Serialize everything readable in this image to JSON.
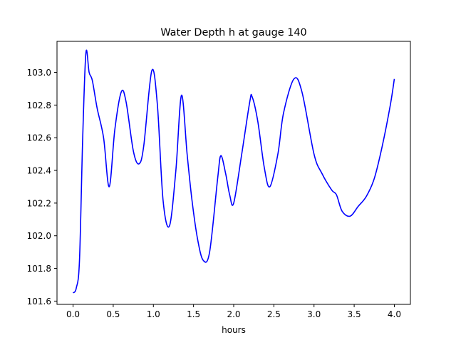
{
  "chart_data": {
    "type": "line",
    "title": "Water Depth h at gauge 140",
    "xlabel": "hours",
    "ylabel": "",
    "xlim": [
      -0.2,
      4.2
    ],
    "ylim": [
      101.58,
      103.19
    ],
    "grid": false,
    "xticks": [
      "0.0",
      "0.5",
      "1.0",
      "1.5",
      "2.0",
      "2.5",
      "3.0",
      "3.5",
      "4.0"
    ],
    "xtick_values": [
      0,
      0.5,
      1.0,
      1.5,
      2.0,
      2.5,
      3.0,
      3.5,
      4.0
    ],
    "yticks": [
      "101.6",
      "101.8",
      "102.0",
      "102.2",
      "102.4",
      "102.6",
      "102.8",
      "103.0"
    ],
    "ytick_values": [
      101.6,
      101.8,
      102.0,
      102.2,
      102.4,
      102.6,
      102.8,
      103.0
    ],
    "series": [
      {
        "name": "h",
        "color": "#0000ff",
        "x": [
          0.0,
          0.04,
          0.08,
          0.12,
          0.16,
          0.2,
          0.24,
          0.3,
          0.38,
          0.45,
          0.52,
          0.6,
          0.66,
          0.75,
          0.82,
          0.88,
          0.98,
          1.05,
          1.12,
          1.2,
          1.28,
          1.35,
          1.42,
          1.48,
          1.55,
          1.62,
          1.7,
          1.8,
          1.84,
          1.9,
          1.95,
          2.0,
          2.1,
          2.2,
          2.23,
          2.3,
          2.38,
          2.45,
          2.55,
          2.62,
          2.75,
          2.85,
          3.0,
          3.1,
          3.22,
          3.28,
          3.35,
          3.45,
          3.55,
          3.65,
          3.75,
          3.85,
          3.95,
          4.0
        ],
        "y": [
          101.65,
          101.68,
          101.85,
          102.6,
          103.12,
          103.0,
          102.95,
          102.78,
          102.6,
          102.3,
          102.65,
          102.88,
          102.82,
          102.52,
          102.44,
          102.55,
          103.01,
          102.8,
          102.22,
          102.06,
          102.4,
          102.86,
          102.5,
          102.22,
          101.98,
          101.85,
          101.9,
          102.35,
          102.49,
          102.38,
          102.25,
          102.2,
          102.5,
          102.82,
          102.85,
          102.7,
          102.42,
          102.3,
          102.5,
          102.75,
          102.96,
          102.88,
          102.5,
          102.38,
          102.28,
          102.25,
          102.15,
          102.12,
          102.18,
          102.24,
          102.35,
          102.55,
          102.8,
          102.96
        ]
      }
    ]
  }
}
